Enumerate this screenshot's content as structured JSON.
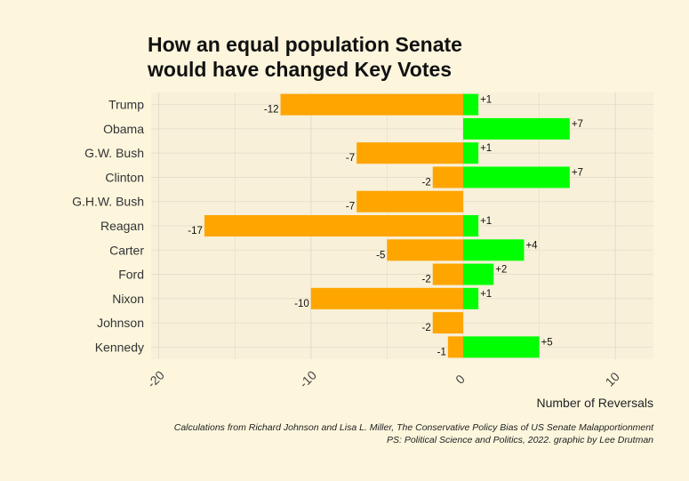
{
  "chart_data": {
    "type": "bar",
    "title": "How an equal population Senate would have changed Key Votes",
    "title_lines": [
      "How an equal population Senate",
      "would have changed Key Votes"
    ],
    "xlabel": "Number of Reversals",
    "ylabel": "",
    "xlim": [
      -20.5,
      12.5
    ],
    "xticks": [
      "-20",
      "-10",
      "0",
      "10"
    ],
    "xtick_values": [
      -20,
      -10,
      0,
      10
    ],
    "grid": true,
    "categories": [
      "Trump",
      "Obama",
      "G.W. Bush",
      "Clinton",
      "G.H.W. Bush",
      "Reagan",
      "Carter",
      "Ford",
      "Nixon",
      "Johnson",
      "Kennedy"
    ],
    "series": [
      {
        "color": "#ffa500",
        "values": [
          -12,
          null,
          -7,
          -2,
          -7,
          -17,
          -5,
          -2,
          -10,
          -2,
          -1
        ],
        "labels": [
          "-12",
          "",
          "-7",
          "-2",
          "-7",
          "-17",
          "-5",
          "-2",
          "-10",
          "-2",
          "-1"
        ]
      },
      {
        "color": "#00ff00",
        "values": [
          1,
          7,
          1,
          7,
          null,
          1,
          4,
          2,
          1,
          null,
          5
        ],
        "labels": [
          "+1",
          "+7",
          "+1",
          "+7",
          "",
          "+1",
          "+4",
          "+2",
          "+1",
          "",
          "+5"
        ]
      }
    ]
  },
  "caption": {
    "line1": "Calculations from Richard Johnson and Lisa L. Miller, The Conservative Policy Bias of US Senate Malapportionment",
    "line2": "PS: Political Science and Politics, 2022.       graphic by Lee Drutman"
  },
  "colors": {
    "background": "#fdf6dd",
    "panel": "#f8f0d8",
    "grid": "#e4dccb"
  }
}
